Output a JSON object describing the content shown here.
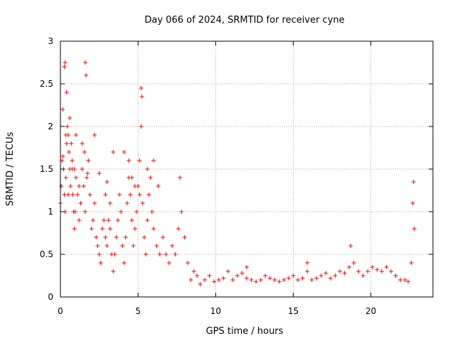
{
  "chart_data": {
    "type": "scatter",
    "title": "Day 066 of 2024, SRMTID for receiver cyne",
    "xlabel": "GPS time / hours",
    "ylabel": "SRMTID / TECUs",
    "xlim": [
      0,
      24
    ],
    "ylim": [
      0,
      3
    ],
    "xticks": [
      0,
      5,
      10,
      15,
      20
    ],
    "xtick_labels": [
      "0",
      "5",
      "10",
      "15",
      "20"
    ],
    "yticks": [
      0,
      0.5,
      1,
      1.5,
      2,
      2.5,
      3
    ],
    "ytick_labels": [
      "0",
      "0.5",
      "1",
      "1.5",
      "2",
      "2.5",
      "3"
    ],
    "grid": true,
    "marker": "+",
    "color": "#ff0000",
    "series": [
      {
        "name": "SRMTID",
        "x": [
          0.0,
          0.05,
          0.1,
          0.15,
          0.2,
          0.25,
          0.3,
          0.35,
          0.4,
          0.45,
          0.5,
          0.55,
          0.6,
          0.65,
          0.7,
          0.75,
          0.8,
          0.85,
          0.9,
          0.95,
          1.0,
          1.1,
          1.2,
          1.3,
          1.4,
          1.5,
          1.6,
          1.7,
          1.8,
          1.9,
          2.0,
          2.1,
          2.2,
          2.3,
          2.4,
          2.5,
          2.6,
          2.7,
          2.8,
          2.9,
          3.0,
          3.1,
          3.2,
          3.3,
          3.4,
          3.5,
          3.6,
          3.7,
          3.8,
          3.9,
          4.0,
          4.1,
          4.2,
          4.3,
          4.4,
          4.5,
          4.6,
          4.7,
          4.8,
          4.9,
          5.0,
          5.1,
          5.2,
          5.3,
          5.4,
          5.5,
          5.6,
          5.7,
          5.8,
          5.9,
          6.0,
          6.2,
          6.4,
          6.6,
          6.8,
          7.0,
          7.2,
          7.4,
          7.6,
          7.8,
          8.0,
          8.2,
          8.4,
          8.6,
          8.8,
          9.0,
          9.3,
          9.6,
          9.9,
          10.2,
          10.5,
          10.8,
          11.1,
          11.4,
          11.7,
          12.0,
          12.3,
          12.6,
          12.9,
          13.2,
          13.5,
          13.8,
          14.1,
          14.4,
          14.7,
          15.0,
          15.3,
          15.6,
          15.9,
          16.2,
          16.5,
          16.8,
          17.1,
          17.4,
          17.7,
          18.0,
          18.3,
          18.6,
          18.9,
          19.2,
          19.5,
          19.8,
          20.1,
          20.4,
          20.7,
          21.0,
          21.3,
          21.6,
          21.9,
          22.2,
          22.4,
          22.6,
          22.8,
          0.3,
          1.6,
          5.2,
          0.25,
          1.65,
          5.25,
          0.4,
          0.6,
          1.0,
          1.4,
          2.2,
          3.4,
          4.1,
          6.0,
          7.7,
          0.15,
          0.5,
          0.9,
          1.2,
          2.5,
          3.0,
          4.4,
          4.8,
          5.6,
          0.35,
          0.75,
          1.55,
          1.75,
          2.9,
          3.2,
          4.6,
          5.1,
          6.3,
          18.7,
          15.9,
          12.0,
          22.75,
          22.7
        ],
        "y": [
          1.1,
          1.3,
          1.6,
          2.2,
          1.5,
          1.2,
          1.0,
          1.4,
          1.8,
          2.0,
          1.9,
          1.7,
          1.5,
          1.3,
          1.8,
          1.6,
          1.2,
          1.0,
          0.8,
          1.0,
          1.4,
          1.2,
          0.9,
          1.1,
          1.5,
          1.3,
          1.0,
          1.4,
          1.6,
          1.2,
          0.8,
          0.9,
          1.1,
          0.7,
          0.6,
          0.5,
          0.4,
          0.8,
          0.9,
          0.7,
          0.6,
          0.9,
          0.8,
          0.5,
          0.3,
          0.5,
          0.7,
          0.9,
          1.2,
          1.0,
          0.6,
          0.4,
          0.7,
          1.1,
          1.4,
          1.2,
          0.9,
          0.6,
          0.8,
          1.0,
          1.3,
          1.6,
          2.0,
          1.1,
          0.7,
          0.5,
          0.9,
          1.2,
          1.4,
          1.0,
          0.8,
          0.6,
          0.5,
          0.7,
          0.5,
          0.4,
          0.6,
          0.5,
          0.8,
          1.0,
          0.7,
          0.4,
          0.2,
          0.3,
          0.25,
          0.15,
          0.2,
          0.25,
          0.18,
          0.2,
          0.22,
          0.3,
          0.2,
          0.25,
          0.28,
          0.22,
          0.2,
          0.18,
          0.2,
          0.25,
          0.22,
          0.2,
          0.18,
          0.2,
          0.22,
          0.25,
          0.2,
          0.22,
          0.3,
          0.2,
          0.22,
          0.25,
          0.28,
          0.22,
          0.25,
          0.3,
          0.28,
          0.35,
          0.4,
          0.3,
          0.25,
          0.3,
          0.35,
          0.32,
          0.3,
          0.35,
          0.3,
          0.25,
          0.2,
          0.2,
          0.18,
          0.4,
          0.8,
          2.75,
          2.75,
          2.45,
          2.7,
          2.6,
          2.35,
          2.4,
          2.1,
          1.9,
          1.8,
          1.9,
          1.7,
          1.7,
          1.6,
          1.4,
          1.65,
          1.2,
          1.5,
          1.3,
          1.45,
          1.35,
          1.6,
          1.3,
          1.5,
          1.9,
          1.5,
          1.7,
          1.45,
          1.2,
          1.1,
          1.4,
          1.2,
          1.3,
          0.6,
          0.4,
          0.35,
          1.35,
          1.1
        ]
      }
    ]
  }
}
